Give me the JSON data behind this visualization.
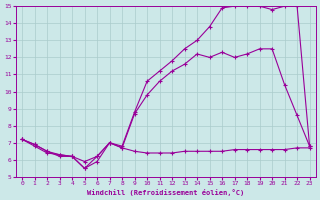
{
  "xlabel": "Windchill (Refroidissement éolien,°C)",
  "background_color": "#cce8e8",
  "grid_color": "#aacccc",
  "line_color": "#990099",
  "xlim": [
    -0.5,
    23.5
  ],
  "ylim": [
    5,
    15
  ],
  "xticks": [
    0,
    1,
    2,
    3,
    4,
    5,
    6,
    7,
    8,
    9,
    10,
    11,
    12,
    13,
    14,
    15,
    16,
    17,
    18,
    19,
    20,
    21,
    22,
    23
  ],
  "yticks": [
    5,
    6,
    7,
    8,
    9,
    10,
    11,
    12,
    13,
    14,
    15
  ],
  "series1_x": [
    0,
    1,
    2,
    3,
    4,
    5,
    6,
    7,
    8,
    9,
    10,
    11,
    12,
    13,
    14,
    15,
    16,
    17,
    18,
    19,
    20,
    21,
    22,
    23
  ],
  "series1_y": [
    7.2,
    6.8,
    6.4,
    6.3,
    6.2,
    5.5,
    5.9,
    7.0,
    6.8,
    8.8,
    10.6,
    11.2,
    11.8,
    12.5,
    13.0,
    13.8,
    14.9,
    15.0,
    15.0,
    15.0,
    14.8,
    15.0,
    15.0,
    6.8
  ],
  "series2_x": [
    0,
    1,
    2,
    3,
    4,
    5,
    6,
    7,
    8,
    9,
    10,
    11,
    12,
    13,
    14,
    15,
    16,
    17,
    18,
    19,
    20,
    21,
    22,
    23
  ],
  "series2_y": [
    7.2,
    6.9,
    6.5,
    6.3,
    6.2,
    5.9,
    6.2,
    7.0,
    6.7,
    8.7,
    9.8,
    10.6,
    11.2,
    11.6,
    12.2,
    12.0,
    12.3,
    12.0,
    12.2,
    12.5,
    12.5,
    10.4,
    8.6,
    6.8
  ],
  "series3_x": [
    0,
    1,
    2,
    3,
    4,
    5,
    6,
    7,
    8,
    9,
    10,
    11,
    12,
    13,
    14,
    15,
    16,
    17,
    18,
    19,
    20,
    21,
    22,
    23
  ],
  "series3_y": [
    7.2,
    6.9,
    6.5,
    6.2,
    6.2,
    5.5,
    6.2,
    7.0,
    6.7,
    6.5,
    6.4,
    6.4,
    6.4,
    6.5,
    6.5,
    6.5,
    6.5,
    6.6,
    6.6,
    6.6,
    6.6,
    6.6,
    6.7,
    6.7
  ]
}
